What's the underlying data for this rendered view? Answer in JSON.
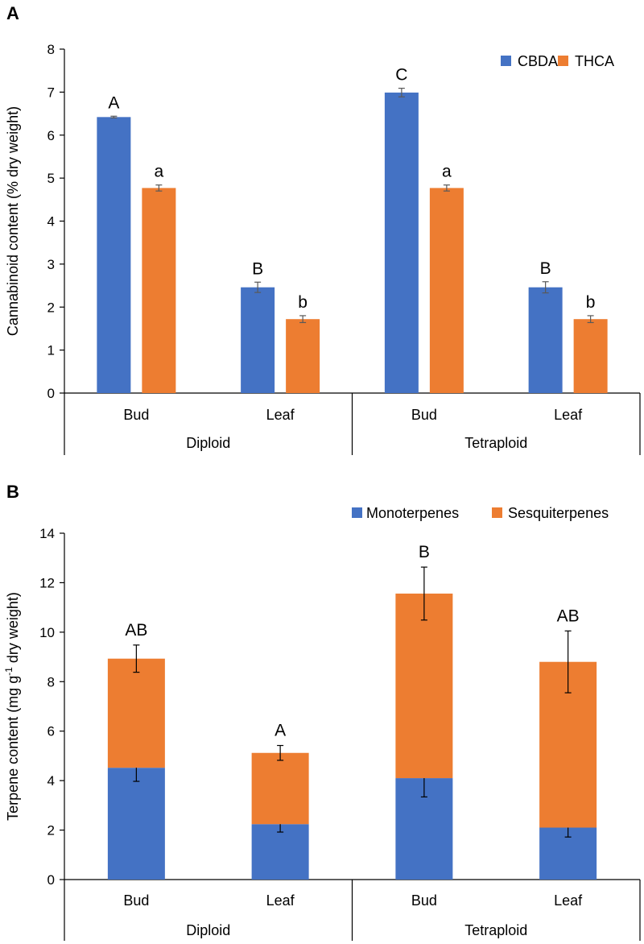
{
  "chart_data": [
    {
      "panel": "A",
      "type": "bar",
      "ylabel": "Cannabinoid content (% dry weight)",
      "ylim": [
        0,
        8
      ],
      "yticks": [
        0,
        1,
        2,
        3,
        4,
        5,
        6,
        7,
        8
      ],
      "groups": [
        {
          "name": "Diploid",
          "categories": [
            "Bud",
            "Leaf"
          ]
        },
        {
          "name": "Tetraploid",
          "categories": [
            "Bud",
            "Leaf"
          ]
        }
      ],
      "categories": [
        "Bud",
        "Leaf",
        "Bud",
        "Leaf"
      ],
      "legend_position": "top-right",
      "series": [
        {
          "name": "CBDA",
          "color": "#4472C4",
          "values": [
            6.42,
            2.46,
            6.99,
            2.46
          ],
          "errors": [
            0.02,
            0.12,
            0.1,
            0.13
          ],
          "labels": [
            "A",
            "B",
            "C",
            "B"
          ]
        },
        {
          "name": "THCA",
          "color": "#ED7D31",
          "values": [
            4.77,
            1.72,
            4.77,
            1.72
          ],
          "errors": [
            0.07,
            0.08,
            0.07,
            0.08
          ],
          "labels": [
            "a",
            "b",
            "a",
            "b"
          ]
        }
      ]
    },
    {
      "panel": "B",
      "type": "bar",
      "stacked": true,
      "ylabel_main": "Terpene  content (mg g",
      "ylabel_sup": "-1",
      "ylabel_tail": " dry weight)",
      "ylim": [
        0,
        14
      ],
      "yticks": [
        0,
        2,
        4,
        6,
        8,
        10,
        12,
        14
      ],
      "groups": [
        {
          "name": "Diploid",
          "categories": [
            "Bud",
            "Leaf"
          ]
        },
        {
          "name": "Tetraploid",
          "categories": [
            "Bud",
            "Leaf"
          ]
        }
      ],
      "categories": [
        "Bud",
        "Leaf",
        "Bud",
        "Leaf"
      ],
      "legend_position": "top-right",
      "series": [
        {
          "name": "Monoterpenes",
          "color": "#4472C4",
          "values": [
            4.52,
            2.24,
            4.1,
            2.1
          ],
          "errors": [
            0.55,
            0.32,
            0.76,
            0.38
          ]
        },
        {
          "name": "Sesquiterpenes",
          "color": "#ED7D31",
          "values": [
            4.41,
            2.88,
            7.46,
            6.7
          ],
          "errors": [
            0.55,
            0.3,
            1.07,
            1.25
          ]
        }
      ],
      "top_labels": [
        "AB",
        "A",
        "B",
        "AB"
      ]
    }
  ]
}
